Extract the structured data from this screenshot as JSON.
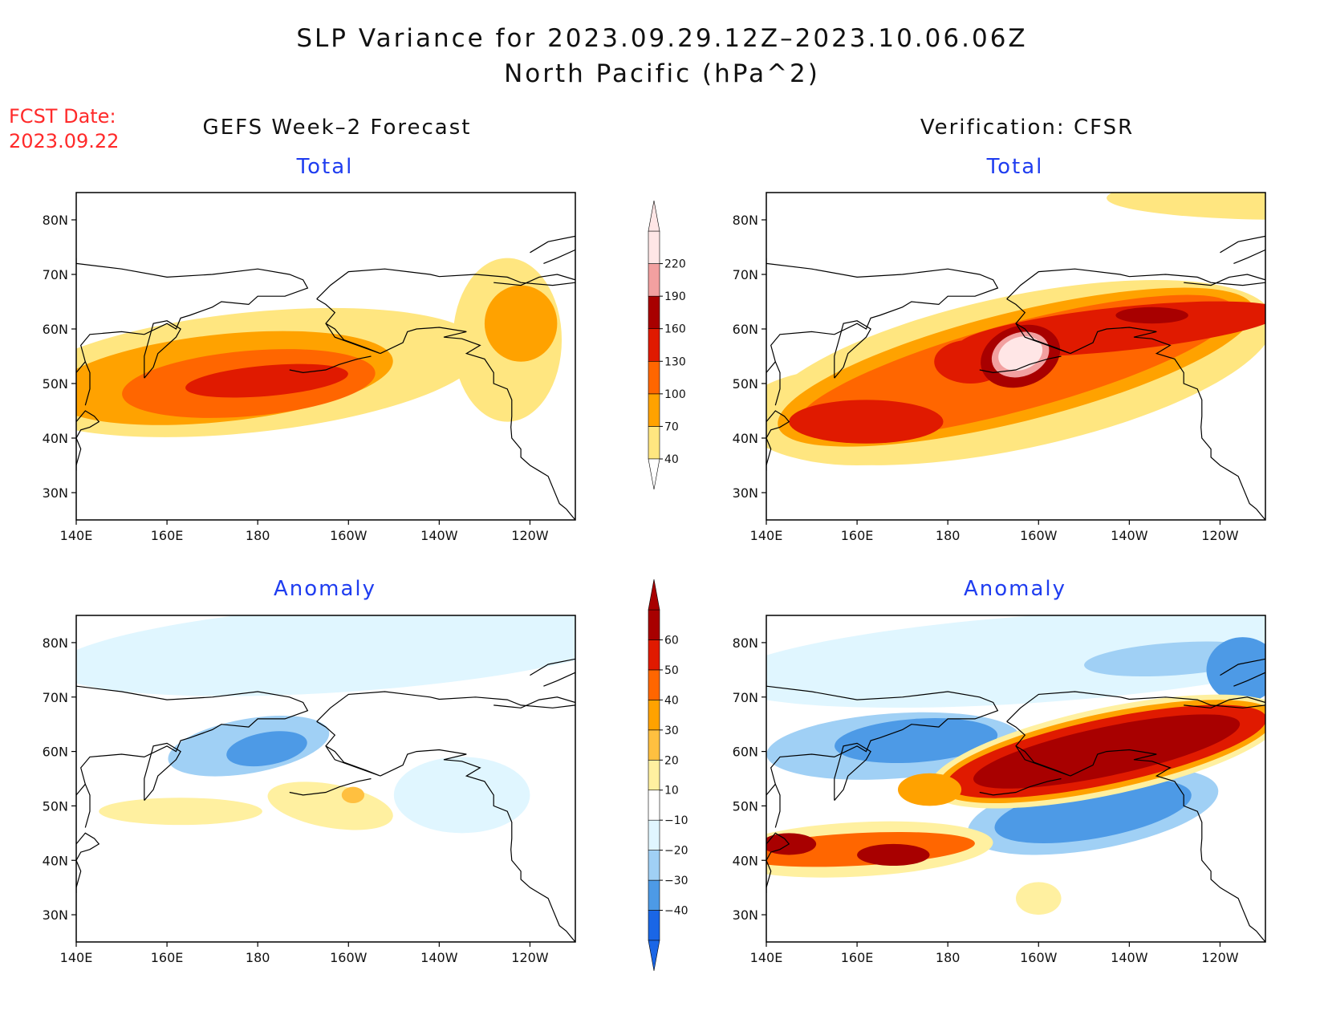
{
  "title_line1": "SLP Variance for 2023.09.29.12Z–2023.10.06.06Z",
  "title_line2": "North Pacific (hPa^2)",
  "fcst_label": "FCST Date:",
  "fcst_date": "2023.09.22",
  "columns": {
    "left": "GEFS Week–2 Forecast",
    "right": "Verification: CFSR"
  },
  "row_labels": {
    "top": "Total",
    "bottom": "Anomaly"
  },
  "axes": {
    "lon_ticks": [
      "140E",
      "160E",
      "180",
      "160W",
      "140W",
      "120W"
    ],
    "lat_ticks": [
      "80N",
      "70N",
      "60N",
      "50N",
      "40N",
      "30N"
    ]
  },
  "colors": {
    "total": [
      "#ffffff",
      "#ffe680",
      "#ffa200",
      "#ff6600",
      "#e01a00",
      "#a80000",
      "#f2a0a0",
      "#ffe6e6"
    ],
    "anomaly": [
      "#1a66e6",
      "#4d9ae6",
      "#a0d0f5",
      "#e0f6ff",
      "#ffffff",
      "#fff0a0",
      "#ffc040",
      "#ffa200",
      "#ff6600",
      "#e01a00",
      "#a80000"
    ]
  },
  "colorbars": {
    "total": {
      "labels": [
        "220",
        "190",
        "160",
        "130",
        "100",
        "70",
        "40"
      ]
    },
    "anomaly": {
      "labels": [
        "60",
        "50",
        "40",
        "30",
        "20",
        "10",
        "−10",
        "−20",
        "−30",
        "−40"
      ]
    }
  },
  "panels": [
    {
      "id": "forecast-total",
      "blobs": [
        {
          "c": 1,
          "cx": 178,
          "cy": 52,
          "rx": 52,
          "ry": 11,
          "rot": -6
        },
        {
          "c": 1,
          "cx": 235,
          "cy": 58,
          "rx": 12,
          "ry": 15,
          "rot": 0
        },
        {
          "c": 2,
          "cx": 172,
          "cy": 51,
          "rx": 38,
          "ry": 8,
          "rot": -6
        },
        {
          "c": 2,
          "cx": 238,
          "cy": 61,
          "rx": 8,
          "ry": 7,
          "rot": 0
        },
        {
          "c": 3,
          "cx": 178,
          "cy": 50,
          "rx": 28,
          "ry": 6,
          "rot": -5
        },
        {
          "c": 4,
          "cx": 182,
          "cy": 50.5,
          "rx": 18,
          "ry": 2.8,
          "rot": -5
        }
      ]
    },
    {
      "id": "verification-total",
      "blobs": [
        {
          "c": 1,
          "cx": 255,
          "cy": 84,
          "rx": 40,
          "ry": 4,
          "rot": 0
        },
        {
          "c": 1,
          "cx": 195,
          "cy": 52,
          "rx": 58,
          "ry": 14,
          "rot": -12
        },
        {
          "c": 1,
          "cx": 160,
          "cy": 44,
          "rx": 26,
          "ry": 9,
          "rot": 0
        },
        {
          "c": 2,
          "cx": 195,
          "cy": 53,
          "rx": 54,
          "ry": 10,
          "rot": -14
        },
        {
          "c": 3,
          "cx": 195,
          "cy": 53,
          "rx": 50,
          "ry": 8,
          "rot": -15
        },
        {
          "c": 4,
          "cx": 162,
          "cy": 43,
          "rx": 17,
          "ry": 4,
          "rot": 0
        },
        {
          "c": 4,
          "cx": 185,
          "cy": 54,
          "rx": 8,
          "ry": 4,
          "rot": 0
        },
        {
          "c": 4,
          "cx": 218,
          "cy": 60,
          "rx": 36,
          "ry": 4,
          "rot": -6
        },
        {
          "c": 5,
          "cx": 196,
          "cy": 55,
          "rx": 9,
          "ry": 5.5,
          "rot": -20
        },
        {
          "c": 5,
          "cx": 225,
          "cy": 62.5,
          "rx": 8,
          "ry": 1.5,
          "rot": 0
        },
        {
          "c": 6,
          "cx": 196,
          "cy": 55.3,
          "rx": 6.5,
          "ry": 4,
          "rot": -20
        },
        {
          "c": 7,
          "cx": 196,
          "cy": 55.5,
          "rx": 5,
          "ry": 3,
          "rot": -20
        }
      ]
    },
    {
      "id": "forecast-anomaly",
      "blobs": [
        {
          "c": 3,
          "cx": 200,
          "cy": 79,
          "rx": 65,
          "ry": 8,
          "rot": -4
        },
        {
          "c": 3,
          "cx": 225,
          "cy": 52,
          "rx": 15,
          "ry": 7,
          "rot": 0
        },
        {
          "c": 2,
          "cx": 178,
          "cy": 61,
          "rx": 18,
          "ry": 5,
          "rot": -10
        },
        {
          "c": 1,
          "cx": 182,
          "cy": 60.5,
          "rx": 9,
          "ry": 3,
          "rot": -10
        },
        {
          "c": 5,
          "cx": 163,
          "cy": 49,
          "rx": 18,
          "ry": 2.5,
          "rot": 0
        },
        {
          "c": 5,
          "cx": 196,
          "cy": 50,
          "rx": 14,
          "ry": 4,
          "rot": 10
        },
        {
          "c": 6,
          "cx": 201,
          "cy": 52,
          "rx": 2.5,
          "ry": 1.5,
          "rot": 0
        }
      ]
    },
    {
      "id": "verification-anomaly",
      "blobs": [
        {
          "c": 3,
          "cx": 200,
          "cy": 77,
          "rx": 70,
          "ry": 8,
          "rot": -4
        },
        {
          "c": 2,
          "cx": 230,
          "cy": 77,
          "rx": 20,
          "ry": 3,
          "rot": -4
        },
        {
          "c": 1,
          "cx": 245,
          "cy": 75,
          "rx": 8,
          "ry": 6,
          "rot": 0
        },
        {
          "c": 2,
          "cx": 168,
          "cy": 61,
          "rx": 28,
          "ry": 6,
          "rot": -4
        },
        {
          "c": 1,
          "cx": 173,
          "cy": 62,
          "rx": 18,
          "ry": 4,
          "rot": -4
        },
        {
          "c": 2,
          "cx": 212,
          "cy": 49,
          "rx": 28,
          "ry": 7,
          "rot": -10
        },
        {
          "c": 1,
          "cx": 212,
          "cy": 49,
          "rx": 22,
          "ry": 5,
          "rot": -10
        },
        {
          "c": 5,
          "cx": 215,
          "cy": 60,
          "rx": 40,
          "ry": 8,
          "rot": -12
        },
        {
          "c": 7,
          "cx": 215,
          "cy": 60,
          "rx": 38,
          "ry": 7,
          "rot": -12
        },
        {
          "c": 9,
          "cx": 215,
          "cy": 60,
          "rx": 36,
          "ry": 6,
          "rot": -12
        },
        {
          "c": 10,
          "cx": 215,
          "cy": 60,
          "rx": 30,
          "ry": 4.5,
          "rot": -12
        },
        {
          "c": 5,
          "cx": 160,
          "cy": 42,
          "rx": 30,
          "ry": 5,
          "rot": -3
        },
        {
          "c": 8,
          "cx": 160,
          "cy": 42,
          "rx": 26,
          "ry": 3,
          "rot": -3
        },
        {
          "c": 10,
          "cx": 168,
          "cy": 41,
          "rx": 8,
          "ry": 2,
          "rot": 0
        },
        {
          "c": 10,
          "cx": 145,
          "cy": 43,
          "rx": 6,
          "ry": 2,
          "rot": 0
        },
        {
          "c": 7,
          "cx": 176,
          "cy": 53,
          "rx": 7,
          "ry": 3,
          "rot": 0
        },
        {
          "c": 5,
          "cx": 200,
          "cy": 33,
          "rx": 5,
          "ry": 3,
          "rot": 0
        }
      ]
    }
  ]
}
